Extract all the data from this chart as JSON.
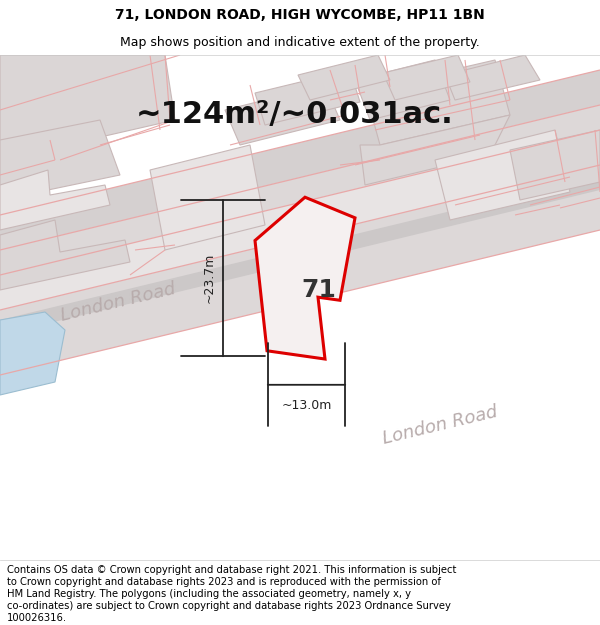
{
  "title_line1": "71, LONDON ROAD, HIGH WYCOMBE, HP11 1BN",
  "title_line2": "Map shows position and indicative extent of the property.",
  "area_label": "~124m²/~0.031ac.",
  "label_71": "71",
  "dim_height": "~23.7m",
  "dim_width": "~13.0m",
  "road_label1": "London Road",
  "road_label2": "London Road",
  "footer_lines": [
    "Contains OS data © Crown copyright and database right 2021. This information is subject",
    "to Crown copyright and database rights 2023 and is reproduced with the permission of",
    "HM Land Registry. The polygons (including the associated geometry, namely x, y",
    "co-ordinates) are subject to Crown copyright and database rights 2023 Ordnance Survey",
    "100026316."
  ],
  "header_bg": "#ffffff",
  "footer_bg": "#ffffff",
  "map_bg": "#f0ecec",
  "road_fill": "#ddd8d8",
  "road_fill2": "#d5d0d0",
  "building_fill": "#dbd6d6",
  "building_fill2": "#e8e4e4",
  "building_stroke": "#c8b8b8",
  "pink_line": "#e8a8a8",
  "highlight_fill": "#f5f0f0",
  "highlight_stroke": "#dd0000",
  "water_fill": "#c0d8e8",
  "water_stroke": "#9bbdd0",
  "dim_color": "#222222",
  "road_text_color": "#b8acac",
  "title_fs": 10,
  "subtitle_fs": 9,
  "area_fs": 22,
  "label71_fs": 18,
  "road_label_fs": 13,
  "dim_fs": 9,
  "footer_fs": 7.2
}
